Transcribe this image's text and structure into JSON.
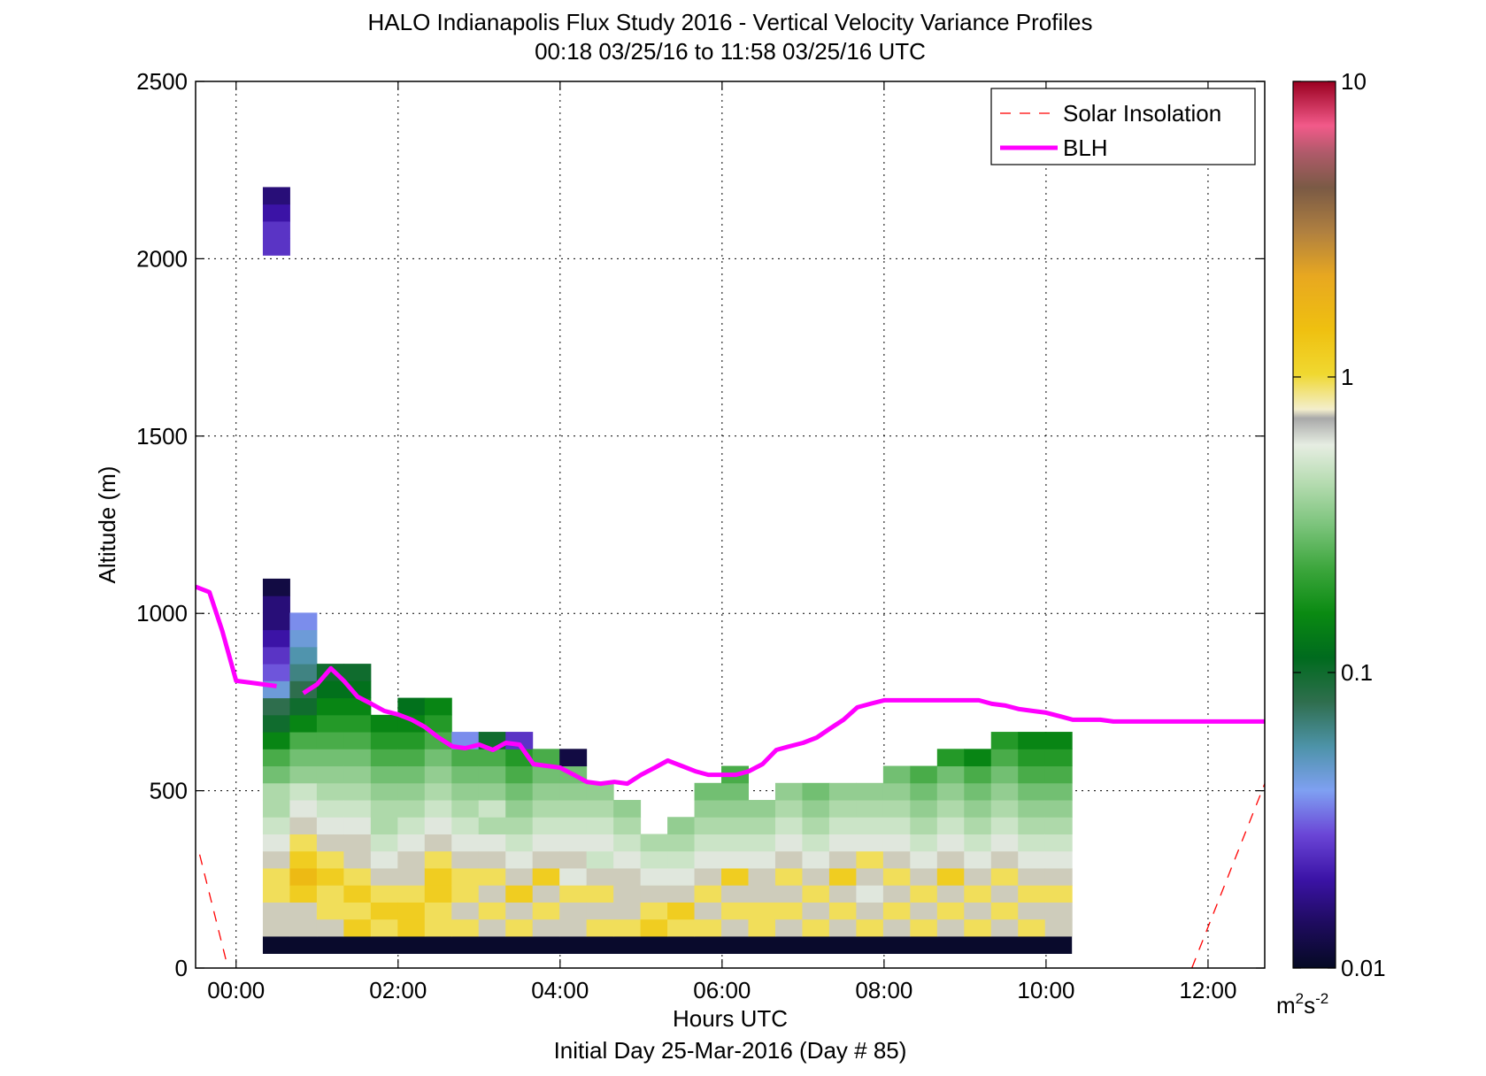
{
  "chart_data": {
    "type": "heatmap",
    "title": "HALO Indianapolis Flux Study 2016 - Vertical Velocity Variance Profiles",
    "subtitle": "00:18 03/25/16 to 11:58 03/25/16  UTC",
    "xlabel": "Hours UTC",
    "xlabel2": "Initial Day 25-Mar-2016 (Day # 85)",
    "ylabel": "Altitude (m)",
    "xlim": [
      -0.5,
      12.7
    ],
    "ylim": [
      0,
      2500
    ],
    "x_ticks": [
      0,
      2,
      4,
      6,
      8,
      10,
      12
    ],
    "x_tick_labels": [
      "00:00",
      "02:00",
      "04:00",
      "06:00",
      "08:00",
      "10:00",
      "12:00"
    ],
    "y_ticks": [
      0,
      500,
      1000,
      1500,
      2000,
      2500
    ],
    "y_tick_labels": [
      "0",
      "500",
      "1000",
      "1500",
      "2000",
      "2500"
    ],
    "grid": true,
    "legend_position": "top-right",
    "legend": [
      {
        "label": "Solar Insolation",
        "color": "#ff0000",
        "style": "dashed"
      },
      {
        "label": "BLH",
        "color": "#ff00ff",
        "style": "solid"
      }
    ],
    "colorbar": {
      "scale": "log",
      "range": [
        0.01,
        10
      ],
      "ticks": [
        0.01,
        0.1,
        1,
        10
      ],
      "tick_labels": [
        "0.01",
        "0.1",
        "1",
        "10"
      ],
      "unit_base": "m",
      "unit_sup1": "2",
      "unit_mid": "s",
      "unit_sup2": "-2"
    },
    "grid_spec": {
      "x_start_hour": 0.33,
      "dx_hours": 0.333,
      "z_start_m": 90,
      "dz_m": 48
    },
    "columns": [
      "VYONNOYNYYNNYGNNNNMGHFFBABCBBDBAVVVVVVVVVVVVVVVVVVVVVVVVVVVVVVVVVVVVVVVVVVVVVVVVVVVVVVVVVVVVVVVVVVVVVVVVVVVVVVVVVVVVVVVVVVVVVVVVVVVVVVVVVVVVVVVVVVVVVVVVVVVVVVVVVVVVVVVVVVVVVVVVVVVVV.................WVKOLBOCCPD",
      "",
      "OOOOOOOOOOOOOOOOOOOOOOOOOOOOOOOOOOOOOOOOOO",
      "NNNNNNNNNNNNNNNNNNNNNNNNNNNNNNNNNNNNNNNNNN"
    ],
    "cells": [
      {
        "c": 0,
        "v": [
          "Y",
          "N",
          "O",
          "P",
          "Q",
          "O",
          "N",
          "K",
          "J",
          "H",
          "G",
          "F",
          "E",
          "D",
          "C",
          "C",
          "B",
          "A",
          "B",
          "A",
          "A",
          "A",
          "A",
          "A",
          "W",
          "V",
          "X",
          "U",
          "V",
          "U",
          "W",
          "X",
          "W",
          "V",
          "U",
          "T",
          "S",
          "R",
          "A",
          "B"
        ]
      }
    ],
    "blh_hours": [
      -0.5,
      -0.33,
      -0.17,
      0.0,
      0.17,
      0.5,
      0.67,
      0.83,
      1.0,
      1.17,
      1.33,
      1.5,
      1.67,
      1.83,
      2.0,
      2.17,
      2.33,
      2.5,
      2.67,
      2.83,
      3.0,
      3.17,
      3.33,
      3.5,
      3.67,
      3.83,
      4.0,
      4.17,
      4.33,
      4.5,
      4.67,
      4.83,
      5.0,
      5.17,
      5.33,
      5.5,
      5.67,
      5.83,
      6.0,
      6.17,
      6.33,
      6.5,
      6.67,
      6.83,
      7.0,
      7.17,
      7.33,
      7.5,
      7.67,
      7.83,
      8.0,
      8.17,
      8.33,
      8.5,
      8.67,
      8.83,
      9.0,
      9.17,
      9.33,
      9.5,
      9.67,
      9.83,
      10.0,
      10.17,
      10.33,
      10.5,
      10.67,
      10.83,
      11.0,
      11.17,
      11.33,
      11.5,
      11.67,
      11.83,
      12.0,
      12.33,
      12.7
    ],
    "blh_altitude_m": [
      1075,
      1060,
      950,
      810,
      805,
      795,
      null,
      775,
      800,
      845,
      810,
      765,
      745,
      725,
      715,
      700,
      680,
      650,
      625,
      620,
      630,
      615,
      635,
      630,
      575,
      570,
      565,
      545,
      525,
      520,
      525,
      520,
      545,
      565,
      585,
      570,
      555,
      545,
      545,
      545,
      555,
      575,
      615,
      625,
      635,
      650,
      675,
      700,
      735,
      745,
      755,
      755,
      755,
      755,
      755,
      755,
      755,
      755,
      745,
      740,
      730,
      725,
      720,
      710,
      700,
      700,
      700,
      695,
      695,
      695,
      695,
      695,
      695,
      695,
      695,
      695,
      695
    ],
    "solar_segments": [
      {
        "hours": [
          -0.45,
          -0.1
        ],
        "altitude_m": [
          320,
          0
        ]
      },
      {
        "hours": [
          11.8,
          12.7
        ],
        "altitude_m": [
          0,
          520
        ]
      }
    ]
  }
}
